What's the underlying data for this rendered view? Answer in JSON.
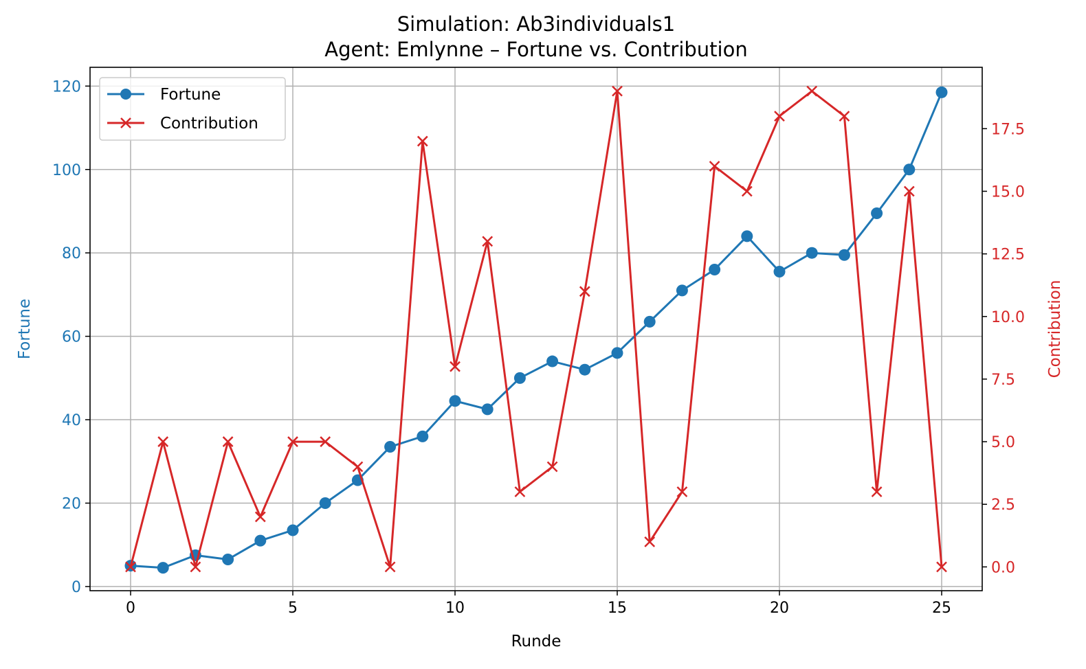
{
  "chart_data": {
    "type": "line",
    "title": "Simulation: Ab3individuals1",
    "subtitle": "Agent: Emlynne – Fortune vs. Contribution",
    "xlabel": "Runde",
    "xlim": [
      -1.25,
      26.25
    ],
    "xticks": [
      "0",
      "5",
      "10",
      "15",
      "20",
      "25"
    ],
    "grid": true,
    "legend_position": "top-left",
    "x": [
      0,
      1,
      2,
      3,
      4,
      5,
      6,
      7,
      8,
      9,
      10,
      11,
      12,
      13,
      14,
      15,
      16,
      17,
      18,
      19,
      20,
      21,
      22,
      23,
      24,
      25
    ],
    "left_axis": {
      "label": "Fortune",
      "color": "#1f77b4",
      "ylim": [
        -1.0,
        124.5
      ],
      "ticks": [
        "0",
        "20",
        "40",
        "60",
        "80",
        "100",
        "120"
      ]
    },
    "right_axis": {
      "label": "Contribution",
      "color": "#d62728",
      "ylim": [
        -0.95,
        19.95
      ],
      "ticks": [
        "0.0",
        "2.5",
        "5.0",
        "7.5",
        "10.0",
        "12.5",
        "15.0",
        "17.5"
      ]
    },
    "series": [
      {
        "name": "Fortune",
        "axis": "left",
        "color": "#1f77b4",
        "marker": "circle",
        "values": [
          5.0,
          4.5,
          7.5,
          6.5,
          11.0,
          13.5,
          20.0,
          25.5,
          33.5,
          36.0,
          44.5,
          42.5,
          50.0,
          54.0,
          52.0,
          56.0,
          63.5,
          71.0,
          76.0,
          84.0,
          75.5,
          80.0,
          79.5,
          89.5,
          100.0,
          118.5
        ]
      },
      {
        "name": "Contribution",
        "axis": "right",
        "color": "#d62728",
        "marker": "x",
        "values": [
          0,
          5,
          0,
          5,
          2,
          5,
          5,
          4,
          0,
          17,
          8,
          13,
          3,
          4,
          11,
          19,
          1,
          3,
          16,
          15,
          18,
          19,
          18,
          3,
          15,
          0
        ]
      }
    ]
  }
}
